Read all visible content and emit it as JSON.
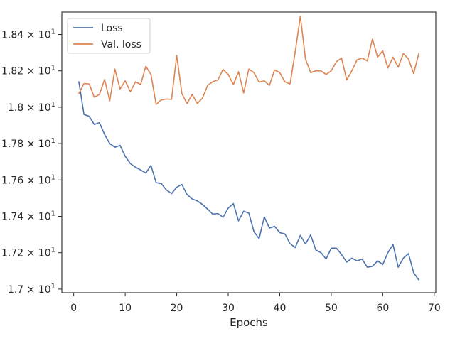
{
  "chart_data": {
    "type": "line",
    "title": "",
    "xlabel": "Epochs",
    "ylabel": "",
    "xlim": [
      -2.3,
      70.3
    ],
    "ylim": [
      16.98,
      18.523
    ],
    "grid": false,
    "legend_position": "top-left",
    "x_ticks": [
      {
        "value": 0,
        "label": "0"
      },
      {
        "value": 10,
        "label": "10"
      },
      {
        "value": 20,
        "label": "20"
      },
      {
        "value": 30,
        "label": "30"
      },
      {
        "value": 40,
        "label": "40"
      },
      {
        "value": 50,
        "label": "50"
      },
      {
        "value": 60,
        "label": "60"
      },
      {
        "value": 70,
        "label": "70"
      }
    ],
    "y_ticks": [
      {
        "value": 17.0,
        "mantissa": "1.7",
        "label": "1.7 × 10^1"
      },
      {
        "value": 17.2,
        "mantissa": "1.72",
        "label": "1.72 × 10^1"
      },
      {
        "value": 17.4,
        "mantissa": "1.74",
        "label": "1.74 × 10^1"
      },
      {
        "value": 17.6,
        "mantissa": "1.76",
        "label": "1.76 × 10^1"
      },
      {
        "value": 17.8,
        "mantissa": "1.78",
        "label": "1.78 × 10^1"
      },
      {
        "value": 18.0,
        "mantissa": "1.8",
        "label": "1.8 × 10^1"
      },
      {
        "value": 18.2,
        "mantissa": "1.82",
        "label": "1.82 × 10^1"
      },
      {
        "value": 18.4,
        "mantissa": "1.84",
        "label": "1.84 × 10^1"
      }
    ],
    "x": [
      1,
      2,
      3,
      4,
      5,
      6,
      7,
      8,
      9,
      10,
      11,
      12,
      13,
      14,
      15,
      16,
      17,
      18,
      19,
      20,
      21,
      22,
      23,
      24,
      25,
      26,
      27,
      28,
      29,
      30,
      31,
      32,
      33,
      34,
      35,
      36,
      37,
      38,
      39,
      40,
      41,
      42,
      43,
      44,
      45,
      46,
      47,
      48,
      49,
      50,
      51,
      52,
      53,
      54,
      55,
      56,
      57,
      58,
      59,
      60,
      61,
      62,
      63,
      64,
      65,
      66,
      67
    ],
    "series": [
      {
        "name": "Loss",
        "color": "#4c72b0",
        "values": [
          18.14,
          17.96,
          17.95,
          17.905,
          17.915,
          17.85,
          17.8,
          17.78,
          17.79,
          17.73,
          17.69,
          17.67,
          17.655,
          17.638,
          17.68,
          17.585,
          17.58,
          17.545,
          17.525,
          17.56,
          17.575,
          17.52,
          17.495,
          17.485,
          17.465,
          17.44,
          17.412,
          17.415,
          17.395,
          17.445,
          17.47,
          17.375,
          17.428,
          17.418,
          17.315,
          17.278,
          17.397,
          17.335,
          17.345,
          17.31,
          17.303,
          17.25,
          17.228,
          17.295,
          17.248,
          17.298,
          17.215,
          17.2,
          17.165,
          17.225,
          17.225,
          17.19,
          17.148,
          17.17,
          17.155,
          17.165,
          17.12,
          17.125,
          17.155,
          17.135,
          17.2,
          17.245,
          17.12,
          17.17,
          17.195,
          17.09,
          17.05
        ]
      },
      {
        "name": "Val. loss",
        "color": "#dd8452",
        "values": [
          18.075,
          18.13,
          18.128,
          18.055,
          18.07,
          18.152,
          18.035,
          18.21,
          18.1,
          18.145,
          18.085,
          18.14,
          18.125,
          18.225,
          18.18,
          18.015,
          18.04,
          18.045,
          18.043,
          18.285,
          18.075,
          18.02,
          18.07,
          18.02,
          18.05,
          18.12,
          18.14,
          18.15,
          18.208,
          18.18,
          18.125,
          18.195,
          18.078,
          18.21,
          18.19,
          18.138,
          18.145,
          18.12,
          18.205,
          18.19,
          18.14,
          18.128,
          18.303,
          18.5,
          18.265,
          18.19,
          18.2,
          18.2,
          18.18,
          18.2,
          18.25,
          18.27,
          18.15,
          18.2,
          18.26,
          18.27,
          18.255,
          18.375,
          18.275,
          18.31,
          18.215,
          18.275,
          18.22,
          18.295,
          18.265,
          18.185,
          18.295
        ]
      }
    ]
  }
}
